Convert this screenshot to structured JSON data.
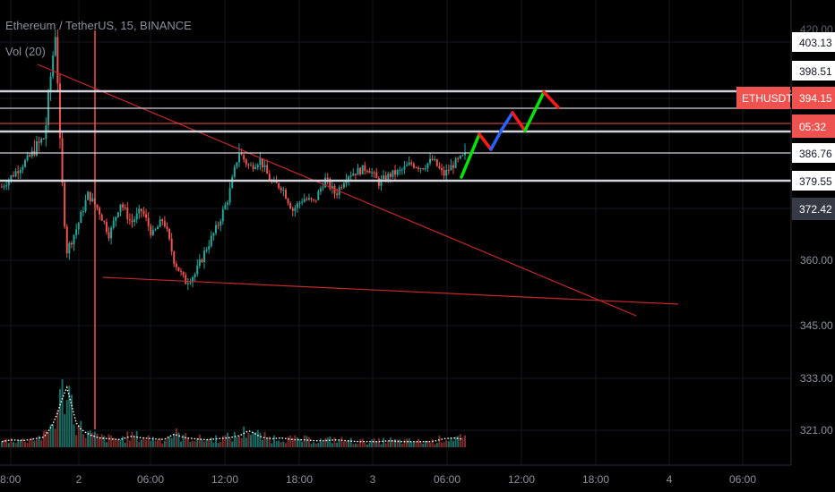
{
  "header": {
    "title": "Ethereum / TetherUS, 15, BINANCE",
    "volume_indicator": "Vol (20)"
  },
  "price_labels": {
    "axis_partial_top": "420.00",
    "level_1": "403.13",
    "level_2": "398.51",
    "symbol_tag": "ETHUSDT",
    "symbol_price": "394.15",
    "countdown": "05:32",
    "level_3": "386.76",
    "level_4": "379.55",
    "last_price": "372.42"
  },
  "colors": {
    "up": "#26a69a",
    "down": "#ef5350",
    "trendline": "#c62828",
    "hline": "#d1d4dc",
    "projection_up": "#00e600",
    "projection_mid": "#2962ff",
    "projection_down": "#ff1a1a",
    "volume_ma": "#ffffff"
  },
  "chart_data": {
    "type": "candlestick",
    "symbol": "ETHUSDT",
    "exchange": "BINANCE",
    "interval_minutes": 15,
    "y_axis": {
      "ticks": [
        360.0,
        345.0,
        333.0,
        321.0
      ],
      "labels": [
        "360.00",
        "345.00",
        "333.00",
        "321.00"
      ]
    },
    "x_axis": {
      "labels": [
        "18:00",
        "2",
        "06:00",
        "12:00",
        "18:00",
        "3",
        "06:00",
        "12:00",
        "18:00",
        "4",
        "06:00"
      ],
      "partial_first_label": "8:00"
    },
    "horizontal_levels": [
      403.13,
      398.51,
      394.15,
      386.76,
      379.55
    ],
    "last_price": 372.42,
    "approx_ohlc_path": [
      378,
      381,
      384,
      387,
      389,
      405,
      362,
      368,
      376,
      372,
      366,
      374,
      369,
      372,
      366,
      370,
      360,
      355,
      357,
      363,
      368,
      375,
      387,
      383,
      385,
      379,
      378,
      372,
      375,
      374,
      380,
      376,
      381,
      382,
      383,
      379,
      381,
      382,
      384,
      383,
      385,
      381,
      384,
      386
    ],
    "projection_path": [
      380.5,
      386,
      382.5,
      385.3,
      388.7,
      383.3,
      392.2,
      390.6
    ],
    "volume_profile": [
      6,
      8,
      7,
      9,
      11,
      30,
      66,
      22,
      14,
      10,
      9,
      8,
      12,
      10,
      9,
      8,
      14,
      10,
      9,
      8,
      9,
      10,
      12,
      18,
      11,
      9,
      10,
      8,
      8,
      7,
      7,
      8,
      7,
      6,
      6,
      6,
      7,
      6,
      6,
      6,
      6,
      9,
      10,
      8
    ]
  }
}
